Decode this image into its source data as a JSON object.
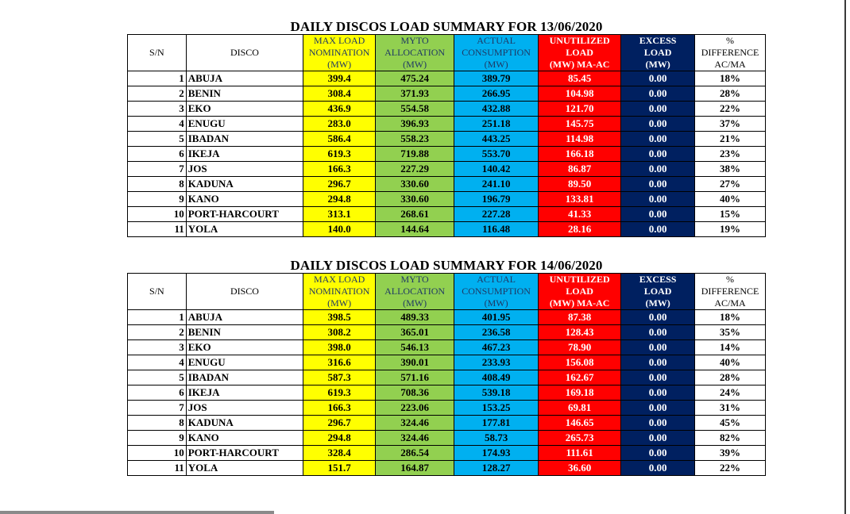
{
  "headers": {
    "sn": "S/N",
    "disco": "DISCO",
    "max": [
      "MAX LOAD",
      "NOMINATION",
      "(MW)"
    ],
    "myto": [
      "MYTO",
      "ALLOCATION",
      "(MW)"
    ],
    "actual": [
      "ACTUAL",
      "CONSUMPTION",
      "(MW)"
    ],
    "unutilized": [
      "UNUTILIZED",
      "LOAD",
      "(MW) MA-AC"
    ],
    "excess": [
      "EXCESS",
      "LOAD",
      "(MW)"
    ],
    "pct": [
      "%",
      "DIFFERENCE",
      "AC/MA"
    ]
  },
  "colors": {
    "max": "#ffff00",
    "myto": "#92d050",
    "actual": "#00b0f0",
    "unutilized": "#ff0000",
    "excess": "#002060"
  },
  "tables": [
    {
      "title": "DAILY DISCOS LOAD SUMMARY FOR 13/06/2020",
      "rows": [
        {
          "sn": "1",
          "disco": "ABUJA",
          "max": "399.4",
          "myto": "475.24",
          "actual": "389.79",
          "unutilized": "85.45",
          "excess": "0.00",
          "pct": "18%"
        },
        {
          "sn": "2",
          "disco": "BENIN",
          "max": "308.4",
          "myto": "371.93",
          "actual": "266.95",
          "unutilized": "104.98",
          "excess": "0.00",
          "pct": "28%"
        },
        {
          "sn": "3",
          "disco": "EKO",
          "max": "436.9",
          "myto": "554.58",
          "actual": "432.88",
          "unutilized": "121.70",
          "excess": "0.00",
          "pct": "22%"
        },
        {
          "sn": "4",
          "disco": "ENUGU",
          "max": "283.0",
          "myto": "396.93",
          "actual": "251.18",
          "unutilized": "145.75",
          "excess": "0.00",
          "pct": "37%"
        },
        {
          "sn": "5",
          "disco": "IBADAN",
          "max": "586.4",
          "myto": "558.23",
          "actual": "443.25",
          "unutilized": "114.98",
          "excess": "0.00",
          "pct": "21%"
        },
        {
          "sn": "6",
          "disco": "IKEJA",
          "max": "619.3",
          "myto": "719.88",
          "actual": "553.70",
          "unutilized": "166.18",
          "excess": "0.00",
          "pct": "23%"
        },
        {
          "sn": "7",
          "disco": "JOS",
          "max": "166.3",
          "myto": "227.29",
          "actual": "140.42",
          "unutilized": "86.87",
          "excess": "0.00",
          "pct": "38%"
        },
        {
          "sn": "8",
          "disco": "KADUNA",
          "max": "296.7",
          "myto": "330.60",
          "actual": "241.10",
          "unutilized": "89.50",
          "excess": "0.00",
          "pct": "27%"
        },
        {
          "sn": "9",
          "disco": "KANO",
          "max": "294.8",
          "myto": "330.60",
          "actual": "196.79",
          "unutilized": "133.81",
          "excess": "0.00",
          "pct": "40%"
        },
        {
          "sn": "10",
          "disco": "PORT-HARCOURT",
          "max": "313.1",
          "myto": "268.61",
          "actual": "227.28",
          "unutilized": "41.33",
          "excess": "0.00",
          "pct": "15%"
        },
        {
          "sn": "11",
          "disco": "YOLA",
          "max": "140.0",
          "myto": "144.64",
          "actual": "116.48",
          "unutilized": "28.16",
          "excess": "0.00",
          "pct": "19%"
        }
      ]
    },
    {
      "title": "DAILY DISCOS LOAD SUMMARY FOR 14/06/2020",
      "rows": [
        {
          "sn": "1",
          "disco": "ABUJA",
          "max": "398.5",
          "myto": "489.33",
          "actual": "401.95",
          "unutilized": "87.38",
          "excess": "0.00",
          "pct": "18%"
        },
        {
          "sn": "2",
          "disco": "BENIN",
          "max": "308.2",
          "myto": "365.01",
          "actual": "236.58",
          "unutilized": "128.43",
          "excess": "0.00",
          "pct": "35%"
        },
        {
          "sn": "3",
          "disco": "EKO",
          "max": "398.0",
          "myto": "546.13",
          "actual": "467.23",
          "unutilized": "78.90",
          "excess": "0.00",
          "pct": "14%"
        },
        {
          "sn": "4",
          "disco": "ENUGU",
          "max": "316.6",
          "myto": "390.01",
          "actual": "233.93",
          "unutilized": "156.08",
          "excess": "0.00",
          "pct": "40%"
        },
        {
          "sn": "5",
          "disco": "IBADAN",
          "max": "587.3",
          "myto": "571.16",
          "actual": "408.49",
          "unutilized": "162.67",
          "excess": "0.00",
          "pct": "28%"
        },
        {
          "sn": "6",
          "disco": "IKEJA",
          "max": "619.3",
          "myto": "708.36",
          "actual": "539.18",
          "unutilized": "169.18",
          "excess": "0.00",
          "pct": "24%"
        },
        {
          "sn": "7",
          "disco": "JOS",
          "max": "166.3",
          "myto": "223.06",
          "actual": "153.25",
          "unutilized": "69.81",
          "excess": "0.00",
          "pct": "31%"
        },
        {
          "sn": "8",
          "disco": "KADUNA",
          "max": "296.7",
          "myto": "324.46",
          "actual": "177.81",
          "unutilized": "146.65",
          "excess": "0.00",
          "pct": "45%"
        },
        {
          "sn": "9",
          "disco": "KANO",
          "max": "294.8",
          "myto": "324.46",
          "actual": "58.73",
          "unutilized": "265.73",
          "excess": "0.00",
          "pct": "82%"
        },
        {
          "sn": "10",
          "disco": "PORT-HARCOURT",
          "max": "328.4",
          "myto": "286.54",
          "actual": "174.93",
          "unutilized": "111.61",
          "excess": "0.00",
          "pct": "39%"
        },
        {
          "sn": "11",
          "disco": "YOLA",
          "max": "151.7",
          "myto": "164.87",
          "actual": "128.27",
          "unutilized": "36.60",
          "excess": "0.00",
          "pct": "22%"
        }
      ]
    }
  ]
}
